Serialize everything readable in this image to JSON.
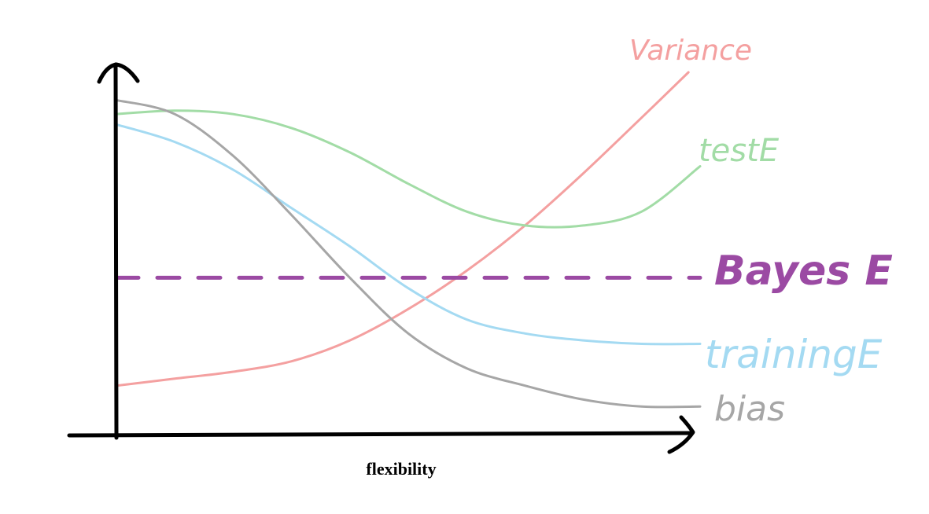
{
  "chart_data": {
    "type": "line",
    "title": "",
    "xlabel": "flexibility",
    "ylabel": "",
    "xlim": [
      0,
      1
    ],
    "ylim": [
      0,
      1
    ],
    "grid": false,
    "legend": "labels at right end of each curve",
    "series": [
      {
        "name": "Variance",
        "color": "#f4a0a0",
        "x": [
          0,
          0.1,
          0.2,
          0.3,
          0.4,
          0.5,
          0.6,
          0.7,
          0.8,
          0.9,
          0.98
        ],
        "y": [
          0.1,
          0.12,
          0.14,
          0.17,
          0.23,
          0.32,
          0.43,
          0.56,
          0.71,
          0.87,
          1.0
        ]
      },
      {
        "name": "testE",
        "color": "#a2dca6",
        "x": [
          0,
          0.1,
          0.2,
          0.3,
          0.4,
          0.5,
          0.6,
          0.7,
          0.8,
          0.9,
          1.0
        ],
        "y": [
          0.88,
          0.89,
          0.88,
          0.84,
          0.77,
          0.68,
          0.6,
          0.56,
          0.56,
          0.6,
          0.73
        ]
      },
      {
        "name": "Bayes E",
        "color": "#9b4aa3",
        "dashed": true,
        "x": [
          0,
          1.0
        ],
        "y": [
          0.41,
          0.41
        ]
      },
      {
        "name": "trainingE",
        "color": "#a4daf2",
        "x": [
          0,
          0.1,
          0.2,
          0.3,
          0.4,
          0.5,
          0.6,
          0.7,
          0.8,
          0.9,
          1.0
        ],
        "y": [
          0.85,
          0.8,
          0.72,
          0.61,
          0.5,
          0.38,
          0.29,
          0.25,
          0.23,
          0.22,
          0.22
        ]
      },
      {
        "name": "bias",
        "color": "#a6a6a6",
        "x": [
          0,
          0.1,
          0.2,
          0.3,
          0.4,
          0.5,
          0.6,
          0.7,
          0.8,
          0.9,
          1.0
        ],
        "y": [
          0.92,
          0.88,
          0.76,
          0.59,
          0.41,
          0.25,
          0.15,
          0.1,
          0.06,
          0.04,
          0.04
        ]
      }
    ]
  }
}
